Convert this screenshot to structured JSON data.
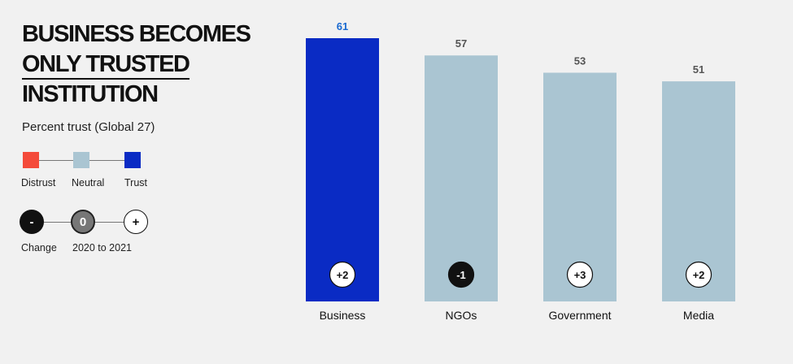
{
  "title": {
    "line1": "BUSINESS BECOMES",
    "line2": "ONLY TRUSTED",
    "line3": "INSTITUTION"
  },
  "subtitle": "Percent trust (Global 27)",
  "legend": {
    "distrust": "Distrust",
    "neutral": "Neutral",
    "trust": "Trust",
    "colors": {
      "distrust": "#f44b3b",
      "neutral": "#aac5d2",
      "trust": "#0a2bc4"
    }
  },
  "change_key": {
    "minus": "-",
    "zero": "0",
    "plus": "+",
    "label_change": "Change",
    "label_period": "2020 to 2021"
  },
  "chart_data": {
    "type": "bar",
    "categories": [
      "Business",
      "NGOs",
      "Government",
      "Media"
    ],
    "values": [
      61,
      57,
      53,
      51
    ],
    "changes": [
      "+2",
      "-1",
      "+3",
      "+2"
    ],
    "value_label_colors": [
      "#1a6ad0",
      "#555555",
      "#555555",
      "#555555"
    ],
    "bar_colors": [
      "#0a2bc4",
      "#aac5d2",
      "#aac5d2",
      "#aac5d2"
    ],
    "badge_styles": [
      "plus",
      "minus",
      "plus",
      "plus"
    ],
    "ylim": [
      0,
      61
    ],
    "title": "BUSINESS BECOMES ONLY TRUSTED INSTITUTION",
    "xlabel": "",
    "ylabel": "Percent trust (Global 27)",
    "grid": false
  }
}
